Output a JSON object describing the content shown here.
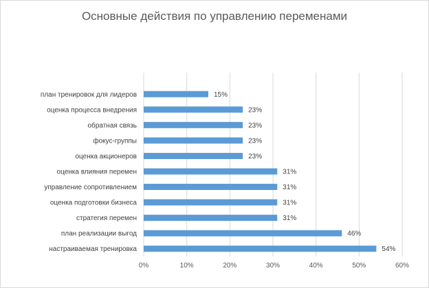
{
  "chart_data": {
    "type": "bar",
    "orientation": "horizontal",
    "title": "Основные действия по управлению переменами",
    "categories": [
      "план тренировок для лидеров",
      "оценка процесса внедрения",
      "обратная связь",
      "фокус-группы",
      "оценка акционеров",
      "оценка влияния перемен",
      "управление сопротивлением",
      "оценка подготовки бизнеса",
      "стратегия перемен",
      "план реализации выгод",
      "настраиваемая тренировка"
    ],
    "values": [
      15,
      23,
      23,
      23,
      23,
      31,
      31,
      31,
      31,
      46,
      54
    ],
    "data_labels": [
      "15%",
      "23%",
      "23%",
      "23%",
      "23%",
      "31%",
      "31%",
      "31%",
      "31%",
      "46%",
      "54%"
    ],
    "x_ticks": [
      "0%",
      "10%",
      "20%",
      "30%",
      "40%",
      "50%",
      "60%"
    ],
    "xlim": [
      0,
      60
    ],
    "xlabel": "",
    "ylabel": "",
    "grid": "vertical",
    "legend": "none",
    "bar_color": "#5b9bd5",
    "grid_color": "#d9d9d9"
  }
}
